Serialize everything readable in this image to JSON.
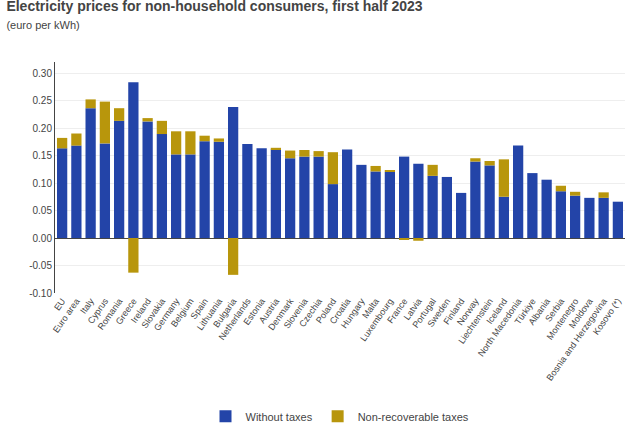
{
  "chart_data": {
    "type": "bar",
    "title": "Electricity prices for non-household consumers, first half 2023",
    "subtitle": "(euro per kWh)",
    "stacked": true,
    "grid": true,
    "legend": "bottom",
    "ylim": [
      -0.1,
      0.32
    ],
    "yticks": [
      {
        "value": -0.1,
        "label": "-0.10"
      },
      -0.05,
      {
        "value": 0.0,
        "label": "0.00"
      },
      0.05,
      {
        "value": 0.1,
        "label": "0.10"
      },
      0.15,
      {
        "value": 0.2,
        "label": "0.20"
      },
      0.25,
      {
        "value": 0.3,
        "label": "0.30"
      }
    ],
    "categories": [
      "EU",
      "Euro area",
      "Italy",
      "Cyprus",
      "Romania",
      "Greece",
      "Ireland",
      "Slovakia",
      "Germany",
      "Belgium",
      "Spain",
      "Lithuania",
      "Bulgaria",
      "Netherlands",
      "Estonia",
      "Austria",
      "Denmark",
      "Slovenia",
      "Czechia",
      "Poland",
      "Croatia",
      "Hungary",
      "Malta",
      "Luxembourg",
      "France",
      "Latvia",
      "Portugal",
      "Sweden",
      "Finland",
      "Norway",
      "Liechtenstein",
      "Iceland",
      "North Macedonia",
      "Türkiye",
      "Albania",
      "Serbia",
      "Montenegro",
      "Moldova",
      "Bosnia and Herzegovina",
      "Kosovo (*)"
    ],
    "series": [
      {
        "name": "Without taxes",
        "color": "#2344a8",
        "values": [
          0.163,
          0.168,
          0.236,
          0.172,
          0.213,
          0.283,
          0.212,
          0.189,
          0.152,
          0.152,
          0.176,
          0.175,
          0.238,
          0.171,
          0.163,
          0.161,
          0.145,
          0.148,
          0.148,
          0.098,
          0.161,
          0.133,
          0.121,
          0.12,
          0.148,
          0.135,
          0.113,
          0.111,
          0.082,
          0.139,
          0.132,
          0.075,
          0.168,
          0.118,
          0.106,
          0.085,
          0.077,
          0.073,
          0.073,
          0.066
        ]
      },
      {
        "name": "Non-recoverable taxes",
        "color": "#b8960c",
        "values": [
          0.019,
          0.022,
          0.016,
          0.076,
          0.023,
          -0.063,
          0.006,
          0.024,
          0.042,
          0.042,
          0.01,
          0.006,
          -0.067,
          0.0,
          0.0,
          0.003,
          0.014,
          0.012,
          0.01,
          0.058,
          0.0,
          0.0,
          0.01,
          0.003,
          -0.003,
          -0.005,
          0.02,
          0.0,
          0.0,
          0.006,
          0.008,
          0.068,
          0.0,
          0.0,
          0.0,
          0.01,
          0.007,
          0.0,
          0.01,
          0.0
        ]
      }
    ]
  }
}
